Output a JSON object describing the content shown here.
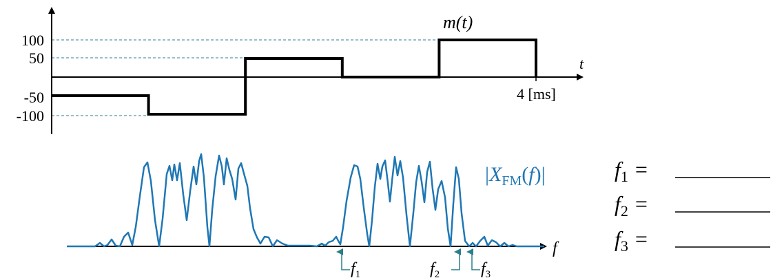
{
  "message_plot": {
    "y_ticks": [
      "100",
      "50",
      "-50",
      "-100"
    ],
    "signal_label": "m(t)",
    "axis_label_t": "t",
    "time_label": "4 [ms]",
    "levels": [
      -50,
      -100,
      50,
      0,
      100
    ],
    "segment_ms": 0.8,
    "colors": {
      "signal": "#000000",
      "dashed": "#2e7d9a"
    }
  },
  "spectrum_plot": {
    "label": "|X_FM(f)|",
    "axis_label_f": "f",
    "color": "#1f77b4",
    "arrow_color": "#2a7f8a",
    "markers": [
      {
        "sym": "f",
        "sub": "1"
      },
      {
        "sym": "f",
        "sub": "2"
      },
      {
        "sym": "f",
        "sub": "3"
      }
    ]
  },
  "answers": [
    {
      "sym": "f",
      "sub": "1",
      "eq": "="
    },
    {
      "sym": "f",
      "sub": "2",
      "eq": "="
    },
    {
      "sym": "f",
      "sub": "3",
      "eq": "="
    }
  ]
}
